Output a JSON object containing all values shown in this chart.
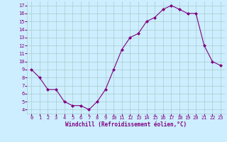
{
  "x": [
    0,
    1,
    2,
    3,
    4,
    5,
    6,
    7,
    8,
    9,
    10,
    11,
    12,
    13,
    14,
    15,
    16,
    17,
    18,
    19,
    20,
    21,
    22,
    23
  ],
  "y": [
    9,
    8,
    6.5,
    6.5,
    5,
    4.5,
    4.5,
    4,
    5,
    6.5,
    9,
    11.5,
    13,
    13.5,
    15,
    15.5,
    16.5,
    17,
    16.5,
    16,
    16,
    12,
    10,
    9.5
  ],
  "line_color": "#800080",
  "marker": "D",
  "marker_size": 2.0,
  "bg_color": "#cceeff",
  "grid_color": "#aacccc",
  "xlabel": "Windchill (Refroidissement éolien,°C)",
  "ylabel_ticks": [
    4,
    5,
    6,
    7,
    8,
    9,
    10,
    11,
    12,
    13,
    14,
    15,
    16,
    17
  ],
  "xlim": [
    -0.5,
    23.5
  ],
  "ylim": [
    3.5,
    17.5
  ],
  "tick_color": "#800080",
  "label_color": "#800080",
  "font_family": "monospace",
  "tick_fontsize": 5.0,
  "xlabel_fontsize": 5.5
}
